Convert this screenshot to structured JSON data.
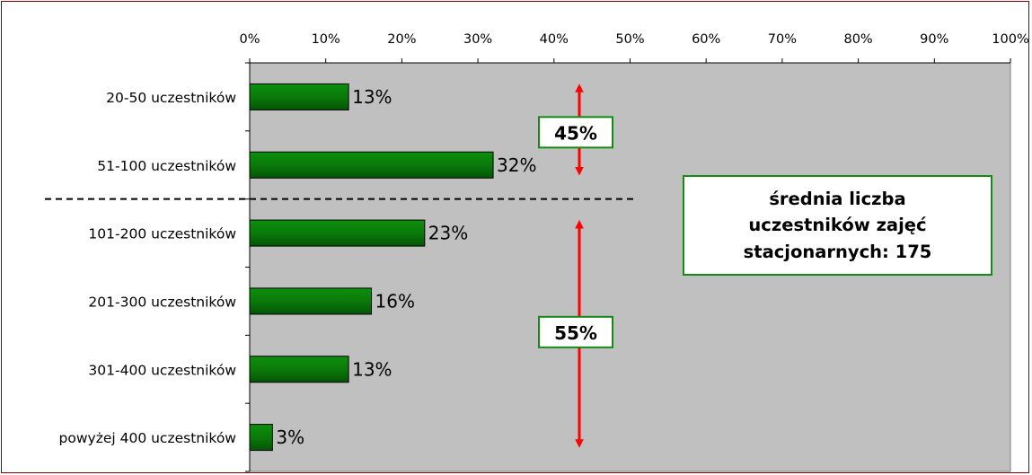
{
  "chart_data": {
    "type": "bar",
    "orientation": "horizontal",
    "categories": [
      "20-50 uczestników",
      "51-100 uczestników",
      "101-200 uczestników",
      "201-300 uczestników",
      "301-400 uczestników",
      "powyżej 400 uczestników"
    ],
    "values": [
      13,
      32,
      23,
      16,
      13,
      3
    ],
    "value_labels": [
      "13%",
      "32%",
      "23%",
      "16%",
      "13%",
      "3%"
    ],
    "xlim": [
      0,
      100
    ],
    "x_ticks": [
      "0%",
      "10%",
      "20%",
      "30%",
      "40%",
      "50%",
      "60%",
      "70%",
      "80%",
      "90%",
      "100%"
    ],
    "x_tick_values": [
      0,
      10,
      20,
      30,
      40,
      50,
      60,
      70,
      80,
      90,
      100
    ],
    "x_axis_position": "top",
    "grid": false,
    "bar_color": "#0a7a0a",
    "plot_background": "#c0c0c0",
    "groups": [
      {
        "label": "45%",
        "categories": [
          "20-50 uczestników",
          "51-100 uczestników"
        ],
        "arrow_color": "#ff0000"
      },
      {
        "label": "55%",
        "categories": [
          "101-200 uczestników",
          "201-300 uczestników",
          "301-400 uczestników",
          "powyżej 400 uczestników"
        ],
        "arrow_color": "#ff0000"
      }
    ],
    "annotation": {
      "lines": [
        "średnia liczba",
        "uczestników zajęć",
        "stacjonarnych: 175"
      ]
    }
  }
}
